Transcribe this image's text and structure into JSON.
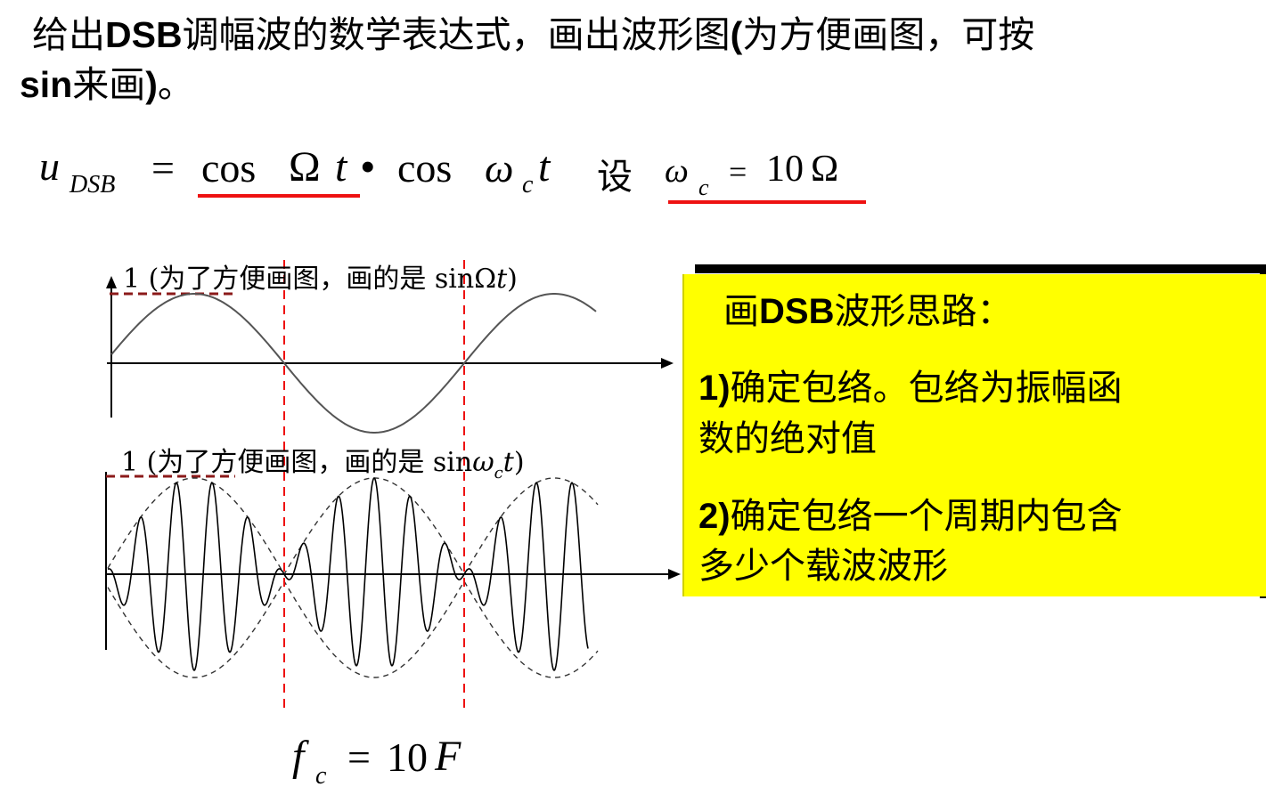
{
  "question": {
    "line1_a": "给出",
    "line1_b": "DSB",
    "line1_c": "调幅波的数学表达式，画出波形图",
    "line1_d": "(",
    "line1_e": "为方便画图，可按",
    "line2_a": "sin",
    "line2_b": "来画",
    "line2_c": ")",
    "line2_d": "。"
  },
  "formula": {
    "u": "u",
    "sub_dsb": "DSB",
    "eq": "=",
    "cos1": "cos",
    "omega_cap": "Ω",
    "t1": "t",
    "bullet": "•",
    "cos2": "cos",
    "omega": "ω",
    "sub_c": "c",
    "t2": "t",
    "set": "设",
    "omega2": "ω",
    "sub_c2": "c",
    "eq2": "=",
    "rhs": "10",
    "omega_cap2": "Ω"
  },
  "annotations": {
    "top_a": "1 (为了方便画图，画的是 sin",
    "top_b": "Ω",
    "top_c": "t",
    "top_d": ")",
    "bottom_a": "1 (为了方便画图，画的是 sin",
    "bottom_b": "ω",
    "bottom_c": "c",
    "bottom_d": "t",
    "bottom_e": ")"
  },
  "box": {
    "title_a": "画",
    "title_b": "DSB",
    "title_c": "波形思路：",
    "item1_num": "1)",
    "item1_line1": "确定包络。包络为振幅函",
    "item1_line2": "数的绝对值",
    "item2_num": "2)",
    "item2_line1": "确定包络一个周期内包含",
    "item2_line2": "多少个载波波形"
  },
  "fc_formula": {
    "f": "f",
    "sub": "c",
    "eq": "=",
    "rhs": "10",
    "F": "F"
  },
  "colors": {
    "accent_red": "#ee1111",
    "dash_dark_red": "#8b1a1a",
    "box_yellow": "#ffff00",
    "wave_gray": "#555555"
  }
}
